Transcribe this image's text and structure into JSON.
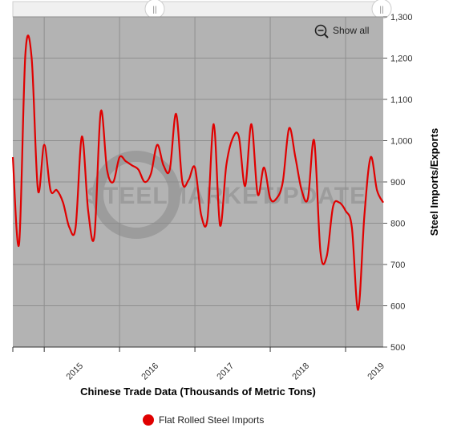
{
  "controls": {
    "show_all_label": "Show all",
    "zoom_icon": "zoom-out-icon",
    "navigator_left_handle": "||",
    "navigator_right_handle": "||"
  },
  "watermark": {
    "word1": "STEEL",
    "word2": "MARKET",
    "word3": "UPDATE"
  },
  "colors": {
    "plot_background": "#b3b3b3",
    "series_line": "#e00000",
    "grid": "#8f8f8f",
    "navigator": "#f0f0f0"
  },
  "chart_data": {
    "type": "line",
    "xlabel": "Chinese Trade Data (Thousands of Metric Tons)",
    "ylabel": "Steel Imports/Exports",
    "ylim": [
      500,
      1300
    ],
    "y_ticks": [
      "500",
      "600",
      "700",
      "800",
      "900",
      "1,000",
      "1,100",
      "1,200",
      "1,300"
    ],
    "x_ticks": [
      "2015",
      "2016",
      "2017",
      "2018",
      "2019"
    ],
    "xlim": [
      "2014-08",
      "2019-07"
    ],
    "grid": true,
    "legend_position": "bottom-center",
    "series": [
      {
        "name": "Flat Rolled Steel Imports",
        "color": "#e00000",
        "x": [
          "2014-08",
          "2014-09",
          "2014-10",
          "2014-11",
          "2014-12",
          "2015-01",
          "2015-02",
          "2015-03",
          "2015-04",
          "2015-05",
          "2015-06",
          "2015-07",
          "2015-08",
          "2015-09",
          "2015-10",
          "2015-11",
          "2015-12",
          "2016-01",
          "2016-02",
          "2016-03",
          "2016-04",
          "2016-05",
          "2016-06",
          "2016-07",
          "2016-08",
          "2016-09",
          "2016-10",
          "2016-11",
          "2016-12",
          "2017-01",
          "2017-02",
          "2017-03",
          "2017-04",
          "2017-05",
          "2017-06",
          "2017-07",
          "2017-08",
          "2017-09",
          "2017-10",
          "2017-11",
          "2017-12",
          "2018-01",
          "2018-02",
          "2018-03",
          "2018-04",
          "2018-05",
          "2018-06",
          "2018-07",
          "2018-08",
          "2018-09",
          "2018-10",
          "2018-11",
          "2018-12",
          "2019-01",
          "2019-02",
          "2019-03",
          "2019-04",
          "2019-05",
          "2019-06",
          "2019-07"
        ],
        "values": [
          960,
          750,
          1210,
          1200,
          880,
          990,
          880,
          880,
          850,
          790,
          790,
          1010,
          830,
          770,
          1070,
          930,
          900,
          960,
          950,
          940,
          930,
          900,
          920,
          990,
          940,
          930,
          1065,
          900,
          905,
          935,
          820,
          810,
          1040,
          795,
          940,
          1005,
          1010,
          890,
          1040,
          870,
          935,
          860,
          860,
          900,
          1030,
          960,
          880,
          860,
          1000,
          730,
          720,
          840,
          850,
          830,
          790,
          590,
          820,
          960,
          880,
          850
        ]
      }
    ]
  }
}
